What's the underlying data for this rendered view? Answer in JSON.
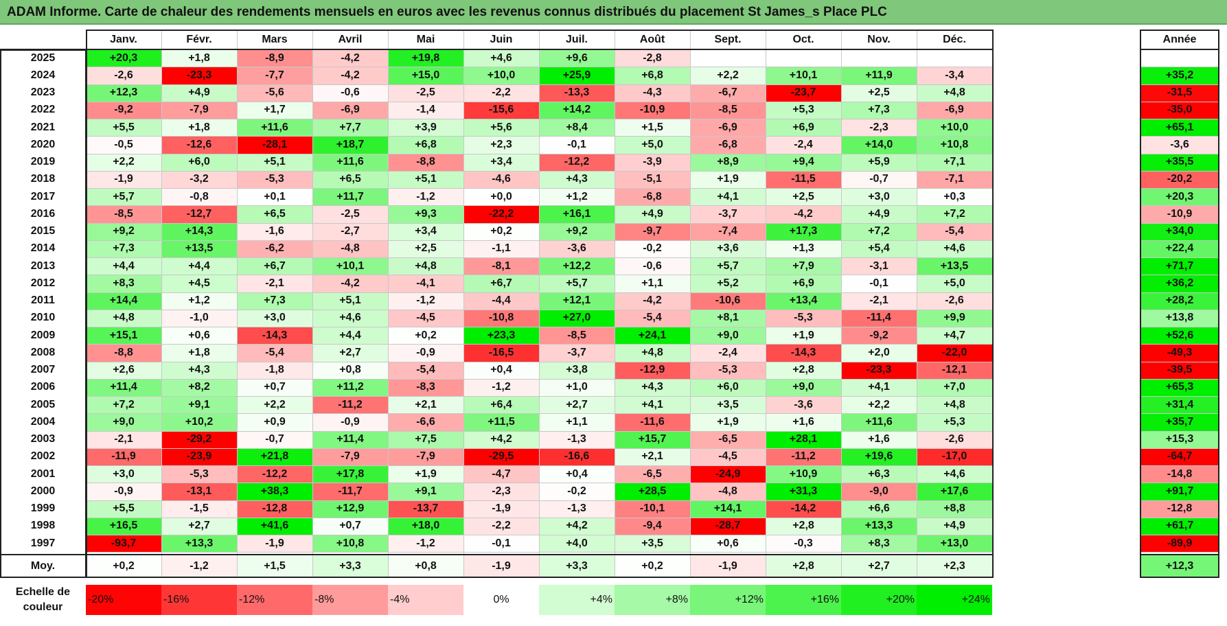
{
  "title": "ADAM Informe. Carte de chaleur des rendements mensuels en euros avec les revenus connus distribués du placement St James_s Place PLC",
  "months": [
    "Janv.",
    "Févr.",
    "Mars",
    "Avril",
    "Mai",
    "Juin",
    "Juil.",
    "Août",
    "Sept.",
    "Oct.",
    "Nov.",
    "Déc."
  ],
  "year_header": "Année",
  "avg_label": "Moy.",
  "scale_label_line1": "Echelle de",
  "scale_label_line2": "couleur",
  "colors": {
    "negative": "#ff0000",
    "neutral": "#ffffff",
    "positive": "#00ee00",
    "title_bar": "#7fc77a"
  },
  "chart_data": {
    "type": "heatmap",
    "title": "ADAM Informe. Carte de chaleur des rendements mensuels en euros avec les revenus connus distribués du placement St James_s Place PLC",
    "x_categories": [
      "Janv.",
      "Févr.",
      "Mars",
      "Avril",
      "Mai",
      "Juin",
      "Juil.",
      "Août",
      "Sept.",
      "Oct.",
      "Nov.",
      "Déc.",
      "Année"
    ],
    "rows": [
      {
        "year": "2025",
        "months": [
          "+20,3",
          "+1,8",
          "-8,9",
          "-4,2",
          "+19,8",
          "+4,6",
          "+9,6",
          "-2,8",
          "",
          "",
          "",
          ""
        ],
        "annual": ""
      },
      {
        "year": "2024",
        "months": [
          "-2,6",
          "-23,3",
          "-7,7",
          "-4,2",
          "+15,0",
          "+10,0",
          "+25,9",
          "+6,8",
          "+2,2",
          "+10,1",
          "+11,9",
          "-3,4"
        ],
        "annual": "+35,2"
      },
      {
        "year": "2023",
        "months": [
          "+12,3",
          "+4,9",
          "-5,6",
          "-0,6",
          "-2,5",
          "-2,2",
          "-13,3",
          "-4,3",
          "-6,7",
          "-23,7",
          "+2,5",
          "+4,8"
        ],
        "annual": "-31,5"
      },
      {
        "year": "2022",
        "months": [
          "-9,2",
          "-7,9",
          "+1,7",
          "-6,9",
          "-1,4",
          "-15,6",
          "+14,2",
          "-10,9",
          "-8,5",
          "+5,3",
          "+7,3",
          "-6,9"
        ],
        "annual": "-35,0"
      },
      {
        "year": "2021",
        "months": [
          "+5,5",
          "+1,8",
          "+11,6",
          "+7,7",
          "+3,9",
          "+5,6",
          "+8,4",
          "+1,5",
          "-6,9",
          "+6,9",
          "-2,3",
          "+10,0"
        ],
        "annual": "+65,1"
      },
      {
        "year": "2020",
        "months": [
          "-0,5",
          "-12,6",
          "-28,1",
          "+18,7",
          "+6,8",
          "+2,3",
          "-0,1",
          "+5,0",
          "-6,8",
          "-2,4",
          "+14,0",
          "+10,8"
        ],
        "annual": "-3,6"
      },
      {
        "year": "2019",
        "months": [
          "+2,2",
          "+6,0",
          "+5,1",
          "+11,6",
          "-8,8",
          "+3,4",
          "-12,2",
          "-3,9",
          "+8,9",
          "+9,4",
          "+5,9",
          "+7,1"
        ],
        "annual": "+35,5"
      },
      {
        "year": "2018",
        "months": [
          "-1,9",
          "-3,2",
          "-5,3",
          "+6,5",
          "+5,1",
          "-4,6",
          "+4,3",
          "-5,1",
          "+1,9",
          "-11,5",
          "-0,7",
          "-7,1"
        ],
        "annual": "-20,2"
      },
      {
        "year": "2017",
        "months": [
          "+5,7",
          "-0,8",
          "+0,1",
          "+11,7",
          "-1,2",
          "+0,0",
          "+1,2",
          "-6,8",
          "+4,1",
          "+2,5",
          "+3,0",
          "+0,3"
        ],
        "annual": "+20,3"
      },
      {
        "year": "2016",
        "months": [
          "-8,5",
          "-12,7",
          "+6,5",
          "-2,5",
          "+9,3",
          "-22,2",
          "+16,1",
          "+4,9",
          "-3,7",
          "-4,2",
          "+4,9",
          "+7,2"
        ],
        "annual": "-10,9"
      },
      {
        "year": "2015",
        "months": [
          "+9,2",
          "+14,3",
          "-1,6",
          "-2,7",
          "+3,4",
          "+0,2",
          "+9,2",
          "-9,7",
          "-7,4",
          "+17,3",
          "+7,2",
          "-5,4"
        ],
        "annual": "+34,0"
      },
      {
        "year": "2014",
        "months": [
          "+7,3",
          "+13,5",
          "-6,2",
          "-4,8",
          "+2,5",
          "-1,1",
          "-3,6",
          "-0,2",
          "+3,6",
          "+1,3",
          "+5,4",
          "+4,6"
        ],
        "annual": "+22,4"
      },
      {
        "year": "2013",
        "months": [
          "+4,4",
          "+4,4",
          "+6,7",
          "+10,1",
          "+4,8",
          "-8,1",
          "+12,2",
          "-0,6",
          "+5,7",
          "+7,9",
          "-3,1",
          "+13,5"
        ],
        "annual": "+71,7"
      },
      {
        "year": "2012",
        "months": [
          "+8,3",
          "+4,5",
          "-2,1",
          "-4,2",
          "-4,1",
          "+6,7",
          "+5,7",
          "+1,1",
          "+5,2",
          "+6,9",
          "-0,1",
          "+5,0"
        ],
        "annual": "+36,2"
      },
      {
        "year": "2011",
        "months": [
          "+14,4",
          "+1,2",
          "+7,3",
          "+5,1",
          "-1,2",
          "-4,4",
          "+12,1",
          "-4,2",
          "-10,6",
          "+13,4",
          "-2,1",
          "-2,6"
        ],
        "annual": "+28,2"
      },
      {
        "year": "2010",
        "months": [
          "+4,8",
          "-1,0",
          "+3,0",
          "+4,6",
          "-4,5",
          "-10,8",
          "+27,0",
          "-5,4",
          "+8,1",
          "-5,3",
          "-11,4",
          "+9,9"
        ],
        "annual": "+13,8"
      },
      {
        "year": "2009",
        "months": [
          "+15,1",
          "+0,6",
          "-14,3",
          "+4,4",
          "+0,2",
          "+23,3",
          "-8,5",
          "+24,1",
          "+9,0",
          "+1,9",
          "-9,2",
          "+4,7"
        ],
        "annual": "+52,6"
      },
      {
        "year": "2008",
        "months": [
          "-8,8",
          "+1,8",
          "-5,4",
          "+2,7",
          "-0,9",
          "-16,5",
          "-3,7",
          "+4,8",
          "-2,4",
          "-14,3",
          "+2,0",
          "-22,0"
        ],
        "annual": "-49,3"
      },
      {
        "year": "2007",
        "months": [
          "+2,6",
          "+4,3",
          "-1,8",
          "+0,8",
          "-5,4",
          "+0,4",
          "+3,8",
          "-12,9",
          "-5,3",
          "+2,8",
          "-23,3",
          "-12,1"
        ],
        "annual": "-39,5"
      },
      {
        "year": "2006",
        "months": [
          "+11,4",
          "+8,2",
          "+0,7",
          "+11,2",
          "-8,3",
          "-1,2",
          "+1,0",
          "+4,3",
          "+6,0",
          "+9,0",
          "+4,1",
          "+7,0"
        ],
        "annual": "+65,3"
      },
      {
        "year": "2005",
        "months": [
          "+7,2",
          "+9,1",
          "+2,2",
          "-11,2",
          "+2,1",
          "+6,4",
          "+2,7",
          "+4,1",
          "+3,5",
          "-3,6",
          "+2,2",
          "+4,8"
        ],
        "annual": "+31,4"
      },
      {
        "year": "2004",
        "months": [
          "+9,0",
          "+10,2",
          "+0,9",
          "-0,9",
          "-6,6",
          "+11,5",
          "+1,1",
          "-11,6",
          "+1,9",
          "+1,6",
          "+11,6",
          "+5,3"
        ],
        "annual": "+35,7"
      },
      {
        "year": "2003",
        "months": [
          "-2,1",
          "-29,2",
          "-0,7",
          "+11,4",
          "+7,5",
          "+4,2",
          "-1,3",
          "+15,7",
          "-6,5",
          "+28,1",
          "+1,6",
          "-2,6"
        ],
        "annual": "+15,3"
      },
      {
        "year": "2002",
        "months": [
          "-11,9",
          "-23,9",
          "+21,8",
          "-7,9",
          "-7,9",
          "-29,5",
          "-16,6",
          "+2,1",
          "-4,5",
          "-11,2",
          "+19,6",
          "-17,0"
        ],
        "annual": "-64,7"
      },
      {
        "year": "2001",
        "months": [
          "+3,0",
          "-5,3",
          "-12,2",
          "+17,8",
          "+1,9",
          "-4,7",
          "+0,4",
          "-6,5",
          "-24,9",
          "+10,9",
          "+6,3",
          "+4,6"
        ],
        "annual": "-14,8"
      },
      {
        "year": "2000",
        "months": [
          "-0,9",
          "-13,1",
          "+38,3",
          "-11,7",
          "+9,1",
          "-2,3",
          "-0,2",
          "+28,5",
          "-4,8",
          "+31,3",
          "-9,0",
          "+17,6"
        ],
        "annual": "+91,7"
      },
      {
        "year": "1999",
        "months": [
          "+5,5",
          "-1,5",
          "-12,8",
          "+12,9",
          "-13,7",
          "-1,9",
          "-1,3",
          "-10,1",
          "+14,1",
          "-14,2",
          "+6,6",
          "+8,8"
        ],
        "annual": "-12,8"
      },
      {
        "year": "1998",
        "months": [
          "+16,5",
          "+2,7",
          "+41,6",
          "+0,7",
          "+18,0",
          "-2,2",
          "+4,2",
          "-9,4",
          "-28,7",
          "+2,8",
          "+13,3",
          "+4,9"
        ],
        "annual": "+61,7"
      },
      {
        "year": "1997",
        "months": [
          "-93,7",
          "+13,3",
          "-1,9",
          "+10,8",
          "-1,2",
          "-0,1",
          "+4,0",
          "+3,5",
          "+0,6",
          "-0,3",
          "+8,3",
          "+13,0"
        ],
        "annual": "-89,9"
      }
    ],
    "average": {
      "label": "Moy.",
      "months": [
        "+0,2",
        "-1,2",
        "+1,5",
        "+3,3",
        "+0,8",
        "-1,9",
        "+3,3",
        "+0,2",
        "-1,9",
        "+2,8",
        "+2,7",
        "+2,3"
      ],
      "annual": "+12,3"
    },
    "color_scale": [
      "-20%",
      "-16%",
      "-12%",
      "-8%",
      "-4%",
      "0%",
      "+4%",
      "+8%",
      "+12%",
      "+16%",
      "+20%",
      "+24%"
    ],
    "color_scale_values": [
      -20,
      -16,
      -12,
      -8,
      -4,
      0,
      4,
      8,
      12,
      16,
      20,
      24
    ],
    "color_range": [
      -24,
      24
    ]
  }
}
